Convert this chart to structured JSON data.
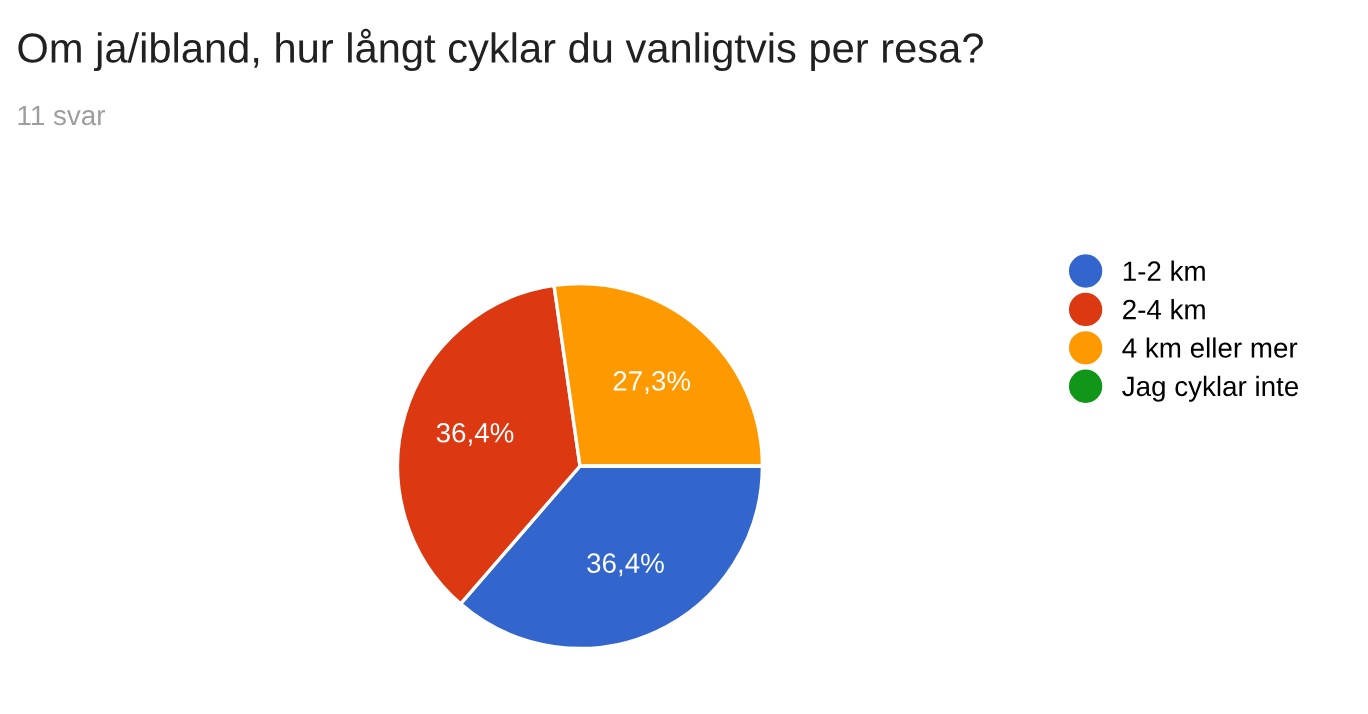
{
  "chart_data": {
    "type": "pie",
    "title": "Om ja/ibland, hur långt cyklar du vanligtvis per resa?",
    "subtitle": "11 svar",
    "categories": [
      "1-2 km",
      "2-4 km",
      "4 km eller mer",
      "Jag cyklar inte"
    ],
    "values": [
      36.4,
      36.4,
      27.3,
      0
    ],
    "colors": [
      "#3366cc",
      "#dc3912",
      "#ff9900",
      "#109618"
    ],
    "value_labels": [
      "36,4%",
      "36,4%",
      "27,3%",
      null
    ],
    "legend": "right"
  }
}
